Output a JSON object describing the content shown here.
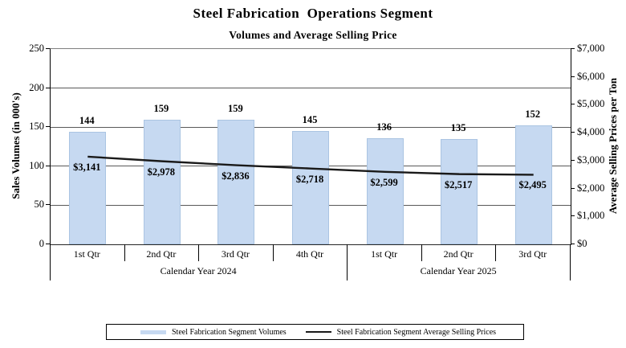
{
  "title": "Steel Fabrication  Operations Segment",
  "subtitle": "Volumes and Average Selling Price",
  "chart_data": {
    "type": "combo",
    "categories": [
      "1st Qtr",
      "2nd Qtr",
      "3rd Qtr",
      "4th Qtr",
      "1st Qtr",
      "2nd Qtr",
      "3rd Qtr"
    ],
    "category_groups": [
      {
        "label": "Calendar Year 2024",
        "span": 4
      },
      {
        "label": "Calendar Year 2025",
        "span": 3
      }
    ],
    "series": [
      {
        "name": "Steel Fabrication Segment Volumes",
        "type": "bar",
        "axis": "left",
        "values": [
          144,
          159,
          159,
          145,
          136,
          135,
          152
        ],
        "labels": [
          "144",
          "159",
          "159",
          "145",
          "136",
          "135",
          "152"
        ],
        "color": "#c6d9f1"
      },
      {
        "name": "Steel Fabrication Segment Average Selling Prices",
        "type": "line",
        "axis": "right",
        "values": [
          3141,
          2978,
          2836,
          2718,
          2599,
          2517,
          2495
        ],
        "labels": [
          "$3,141",
          "$2,978",
          "$2,836",
          "$2,718",
          "$2,599",
          "$2,517",
          "$2,495"
        ],
        "color": "#1a1a1a"
      }
    ],
    "left_axis": {
      "title": "Sales Volumes (in 000's)",
      "min": 0,
      "max": 250,
      "step": 50,
      "tick_labels": [
        "0",
        "50",
        "100",
        "150",
        "200",
        "250"
      ]
    },
    "right_axis": {
      "title": "Average Selling Prices per Ton",
      "min": 0,
      "max": 7000,
      "step": 1000,
      "tick_labels": [
        "$0",
        "$1,000",
        "$2,000",
        "$3,000",
        "$4,000",
        "$5,000",
        "$6,000",
        "$7,000"
      ]
    },
    "grid": true,
    "legend_position": "bottom"
  },
  "legend": {
    "items": [
      {
        "label": "Steel Fabrication Segment Volumes",
        "swatch": "bar"
      },
      {
        "label": "Steel Fabrication Segment Average Selling Prices",
        "swatch": "line"
      }
    ]
  },
  "colors": {
    "bar_fill": "#c6d9f1",
    "bar_border": "#aac4e2",
    "line": "#1a1a1a",
    "gridline": "#595959"
  }
}
